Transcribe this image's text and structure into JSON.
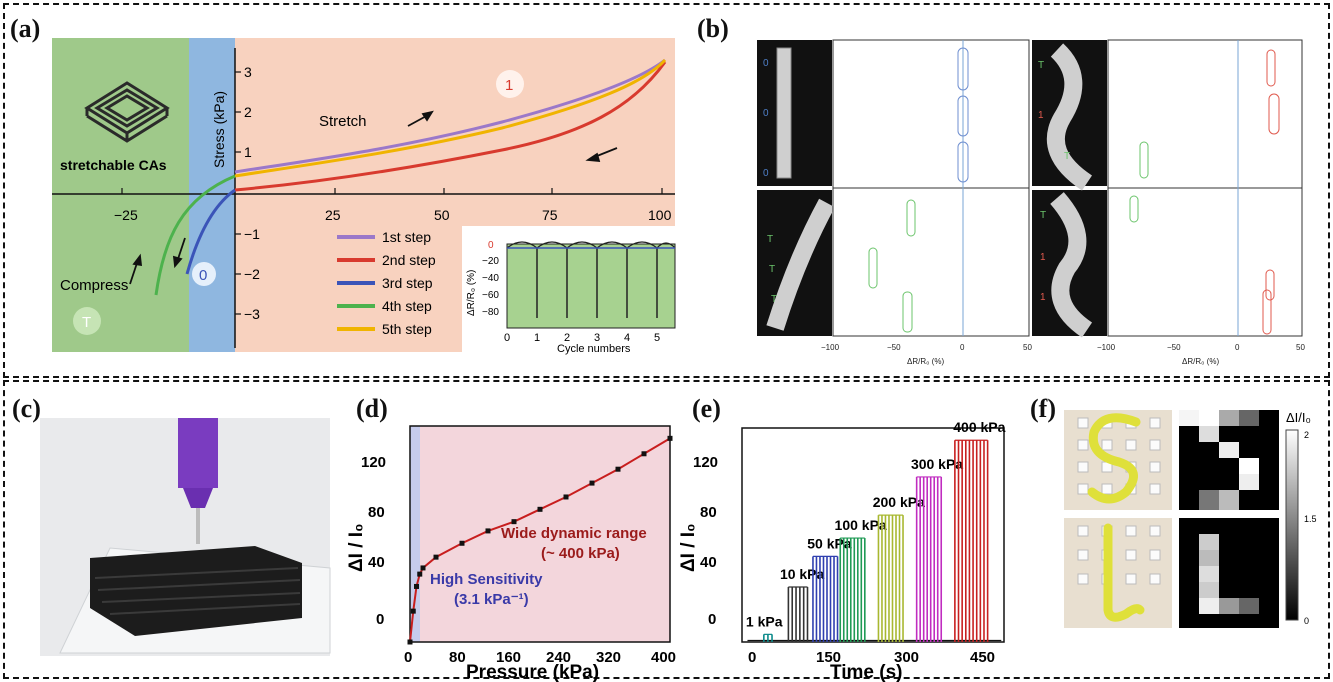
{
  "panels": {
    "a": {
      "label": "(a)",
      "stress_axis": "Stress (kPa)",
      "region_T": "T",
      "region_0": "0",
      "region_1": "1",
      "stretch_label": "Stretch",
      "compress_label": "Compress",
      "material_caption": "stretchable CAs",
      "x_ticks": [
        "−25",
        "25",
        "50",
        "75",
        "100"
      ],
      "y_ticks": [
        "3",
        "2",
        "1",
        "−1",
        "−2",
        "−3"
      ],
      "legend": [
        "1st step",
        "2nd step",
        "3rd step",
        "4th step",
        "5th step"
      ],
      "inset": {
        "ylabel": "ΔR/R₀ (%)",
        "xlabel": "Cycle numbers",
        "x_ticks": [
          "0",
          "1",
          "2",
          "3",
          "4",
          "5"
        ],
        "y_ticks": [
          "0",
          "−20",
          "−40",
          "−60",
          "−80"
        ]
      },
      "colors": {
        "green": "#9fc98a",
        "blue": "#8fb7e0",
        "peach": "#f8d2bf",
        "s1": "#9b78c9",
        "s2": "#d83a2e",
        "s3": "#3b54b8",
        "s4": "#4db24d",
        "s5": "#f0b400"
      }
    },
    "b": {
      "label": "(b)",
      "xlabel": "ΔR/R₀ (%)",
      "x_ticks": [
        "−100",
        "−50",
        "0",
        "50"
      ],
      "markers_left_top": [
        "0",
        "0",
        "0"
      ],
      "markers_right_top": [
        "T",
        "1",
        "T"
      ],
      "markers_left_bottom": [
        "T",
        "T",
        "T"
      ],
      "markers_right_bottom": [
        "T",
        "1",
        "1"
      ]
    },
    "c": {
      "label": "(c)"
    },
    "d": {
      "label": "(d)",
      "ylabel": "ΔI / I₀",
      "xlabel": "Pressure (kPa)",
      "x_ticks": [
        "0",
        "80",
        "160",
        "240",
        "320",
        "400"
      ],
      "y_ticks": [
        "0",
        "40",
        "80",
        "120"
      ],
      "annot_range": "Wide dynamic range",
      "annot_range2": "(~ 400 kPa)",
      "annot_sens": "High Sensitivity",
      "annot_sens2": "(3.1 kPa⁻¹)"
    },
    "e": {
      "label": "(e)",
      "ylabel": "ΔI / I₀",
      "xlabel": "Time (s)",
      "x_ticks": [
        "0",
        "150",
        "300",
        "450"
      ],
      "y_ticks": [
        "0",
        "40",
        "80",
        "120"
      ],
      "levels": [
        "1 kPa",
        "10 kPa",
        "50 kPa",
        "100 kPa",
        "200 kPa",
        "300 kPa",
        "400 kPa"
      ]
    },
    "f": {
      "label": "(f)",
      "colorbar_title": "ΔI/I₀",
      "colorbar_ticks": [
        "2",
        "1.5",
        "0"
      ]
    }
  },
  "chart_data": [
    {
      "type": "line",
      "panel": "d",
      "xlabel": "Pressure (kPa)",
      "ylabel": "ΔI / I₀",
      "xlim": [
        0,
        400
      ],
      "ylim": [
        0,
        140
      ],
      "series": [
        {
          "x": [
            0,
            5,
            10,
            15,
            20,
            40,
            80,
            120,
            160,
            200,
            240,
            280,
            320,
            360,
            400
          ],
          "y": [
            0,
            20,
            36,
            44,
            48,
            55,
            64,
            72,
            78,
            86,
            94,
            103,
            112,
            122,
            132
          ]
        }
      ]
    },
    {
      "type": "bar",
      "panel": "e",
      "xlabel": "Time (s)",
      "ylabel": "ΔI / I₀",
      "xlim": [
        0,
        480
      ],
      "ylim": [
        0,
        140
      ],
      "categories": [
        "1 kPa",
        "10 kPa",
        "50 kPa",
        "100 kPa",
        "200 kPa",
        "300 kPa",
        "400 kPa"
      ],
      "values": [
        5,
        36,
        56,
        68,
        83,
        108,
        132
      ],
      "t_start": [
        40,
        85,
        130,
        180,
        250,
        320,
        390
      ],
      "t_end": [
        55,
        120,
        175,
        225,
        295,
        365,
        450
      ],
      "colors": [
        "#0b8a8a",
        "#333333",
        "#2f3fb0",
        "#1f9a55",
        "#a8b830",
        "#c02cc0",
        "#c82020"
      ]
    }
  ]
}
